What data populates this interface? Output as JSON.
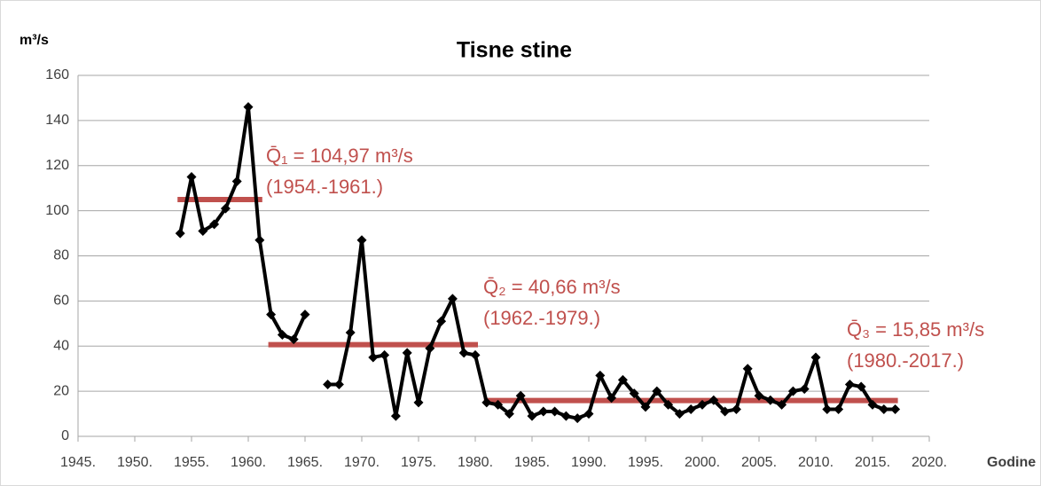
{
  "chart_data": {
    "type": "line",
    "title": "Tisne stine",
    "y_label": "m³/s",
    "x_label": "Godine",
    "x": [
      1954,
      1955,
      1956,
      1957,
      1958,
      1959,
      1960,
      1961,
      1962,
      1963,
      1964,
      1965,
      1966,
      1967,
      1968,
      1969,
      1970,
      1971,
      1972,
      1973,
      1974,
      1975,
      1976,
      1977,
      1978,
      1979,
      1980,
      1981,
      1982,
      1983,
      1984,
      1985,
      1986,
      1987,
      1988,
      1989,
      1990,
      1991,
      1992,
      1993,
      1994,
      1995,
      1996,
      1997,
      1998,
      1999,
      2000,
      2001,
      2002,
      2003,
      2004,
      2005,
      2006,
      2007,
      2008,
      2009,
      2010,
      2011,
      2012,
      2013,
      2014,
      2015,
      2016,
      2017
    ],
    "series": [
      {
        "color": "#000000",
        "values": [
          90,
          115,
          91,
          94,
          101,
          113,
          146,
          87,
          54,
          45,
          43,
          54,
          null,
          23,
          23,
          46,
          87,
          35,
          36,
          9,
          37,
          15,
          39,
          51,
          61,
          37,
          36,
          15,
          14,
          10,
          18,
          9,
          11,
          11,
          9,
          8,
          10,
          27,
          17,
          25,
          19,
          13,
          20,
          14,
          10,
          12,
          14,
          16,
          11,
          12,
          30,
          18,
          16,
          14,
          20,
          21,
          35,
          12,
          12,
          23,
          22,
          14,
          12,
          12
        ]
      }
    ],
    "means": [
      {
        "value": 104.97,
        "label": "Q̄₁ = 104,97 m³/s",
        "period": "(1954.-1961.)",
        "xrange": [
          1954,
          1961
        ]
      },
      {
        "value": 40.66,
        "label": "Q̄₂ = 40,66 m³/s",
        "period": "(1962.-1979.)",
        "xrange": [
          1962,
          1980
        ]
      },
      {
        "value": 15.85,
        "label": "Q̄₃ = 15,85 m³/s",
        "period": "(1980.-2017.)",
        "xrange": [
          1981,
          2017
        ]
      }
    ],
    "mean_color": "#c0504d",
    "xlim": [
      1945,
      2020
    ],
    "xticks": [
      {
        "value": 1945,
        "label": "1945."
      },
      {
        "value": 1950,
        "label": "1950."
      },
      {
        "value": 1955,
        "label": "1955."
      },
      {
        "value": 1960,
        "label": "1960."
      },
      {
        "value": 1965,
        "label": "1965."
      },
      {
        "value": 1970,
        "label": "1970."
      },
      {
        "value": 1975,
        "label": "1975."
      },
      {
        "value": 1980,
        "label": "1980."
      },
      {
        "value": 1985,
        "label": "1985."
      },
      {
        "value": 1990,
        "label": "1990."
      },
      {
        "value": 1995,
        "label": "1995."
      },
      {
        "value": 2000,
        "label": "2000."
      },
      {
        "value": 2005,
        "label": "2005."
      },
      {
        "value": 2010,
        "label": "2010."
      },
      {
        "value": 2015,
        "label": "2015."
      },
      {
        "value": 2020,
        "label": "2020."
      }
    ],
    "ylim": [
      0,
      160
    ],
    "yticks": [
      0,
      20,
      40,
      60,
      80,
      100,
      120,
      140,
      160
    ],
    "grid": true
  }
}
